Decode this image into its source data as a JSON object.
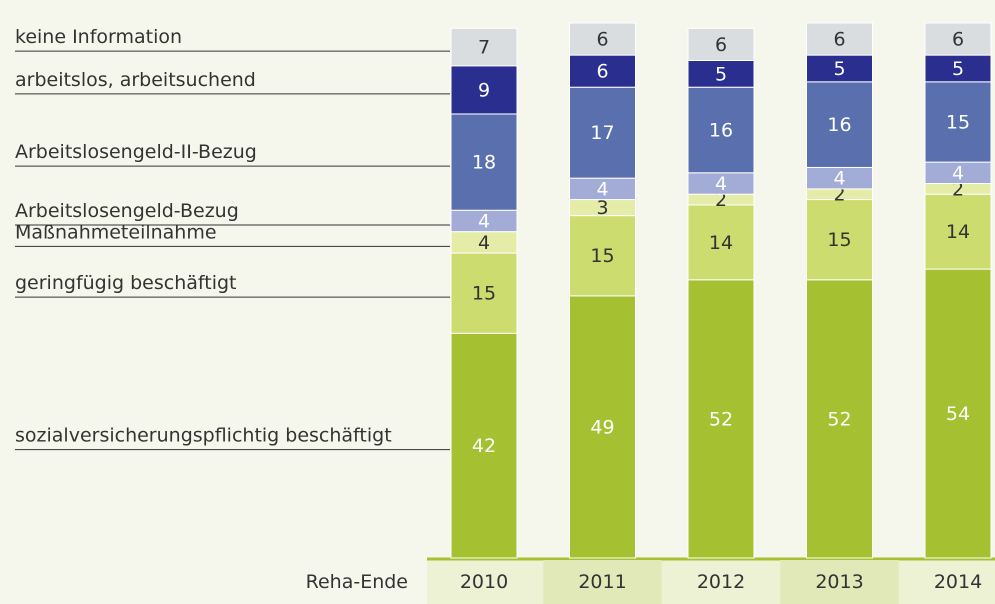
{
  "chart_data": {
    "type": "stacked_bar",
    "x_label": "Reha-Ende",
    "categories": [
      "2010",
      "2011",
      "2012",
      "2013",
      "2014"
    ],
    "series": [
      {
        "name": "sozialversicherungspflichtig beschäftigt",
        "color": "#a5c030",
        "text_color": "#ffffff",
        "values": [
          42,
          49,
          52,
          52,
          54
        ]
      },
      {
        "name": "geringfügig beschäftigt",
        "color": "#cddc6e",
        "text_color": "#333333",
        "values": [
          15,
          15,
          14,
          15,
          14
        ]
      },
      {
        "name": "Maßnahmeteilnahme",
        "color": "#e5eca8",
        "text_color": "#333333",
        "values": [
          4,
          3,
          2,
          2,
          2
        ]
      },
      {
        "name": "Arbeitslosengeld-Bezug",
        "color": "#a3acd6",
        "text_color": "#ffffff",
        "values": [
          4,
          4,
          4,
          4,
          4
        ]
      },
      {
        "name": "Arbeitslosengeld-II-Bezug",
        "color": "#5a70ae",
        "text_color": "#ffffff",
        "values": [
          18,
          17,
          16,
          16,
          15
        ]
      },
      {
        "name": "arbeitslos, arbeitsuchend",
        "color": "#2a2f8f",
        "text_color": "#ffffff",
        "values": [
          9,
          6,
          5,
          5,
          5
        ]
      },
      {
        "name": "keine Information",
        "color": "#d9dde0",
        "text_color": "#333333",
        "values": [
          7,
          6,
          6,
          6,
          6
        ]
      }
    ]
  }
}
